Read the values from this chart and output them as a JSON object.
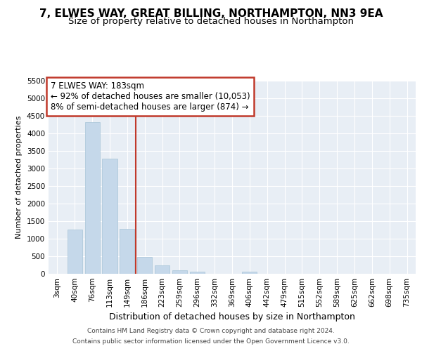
{
  "title1": "7, ELWES WAY, GREAT BILLING, NORTHAMPTON, NN3 9EA",
  "title2": "Size of property relative to detached houses in Northampton",
  "xlabel": "Distribution of detached houses by size in Northampton",
  "ylabel": "Number of detached properties",
  "categories": [
    "3sqm",
    "40sqm",
    "76sqm",
    "113sqm",
    "149sqm",
    "186sqm",
    "223sqm",
    "259sqm",
    "296sqm",
    "332sqm",
    "369sqm",
    "406sqm",
    "442sqm",
    "479sqm",
    "515sqm",
    "552sqm",
    "589sqm",
    "625sqm",
    "662sqm",
    "698sqm",
    "735sqm"
  ],
  "values": [
    0,
    1270,
    4330,
    3290,
    1290,
    480,
    240,
    100,
    65,
    0,
    0,
    70,
    0,
    0,
    0,
    0,
    0,
    0,
    0,
    0,
    0
  ],
  "bar_color": "#c5d8ea",
  "bar_edge_color": "#a8c4d8",
  "redline_index": 5,
  "redline_label": "7 ELWES WAY: 183sqm",
  "annotation_line1": "← 92% of detached houses are smaller (10,053)",
  "annotation_line2": "8% of semi-detached houses are larger (874) →",
  "ylim_max": 5500,
  "yticks": [
    0,
    500,
    1000,
    1500,
    2000,
    2500,
    3000,
    3500,
    4000,
    4500,
    5000,
    5500
  ],
  "footnote1": "Contains HM Land Registry data © Crown copyright and database right 2024.",
  "footnote2": "Contains public sector information licensed under the Open Government Licence v3.0.",
  "fig_bg_color": "#ffffff",
  "plot_bg_color": "#e8eef5",
  "grid_color": "#ffffff",
  "redline_color": "#c0392b",
  "title1_fontsize": 11,
  "title2_fontsize": 9.5,
  "tick_fontsize": 7.5,
  "ylabel_fontsize": 8,
  "xlabel_fontsize": 9,
  "footnote_fontsize": 6.5,
  "annot_fontsize": 8.5
}
